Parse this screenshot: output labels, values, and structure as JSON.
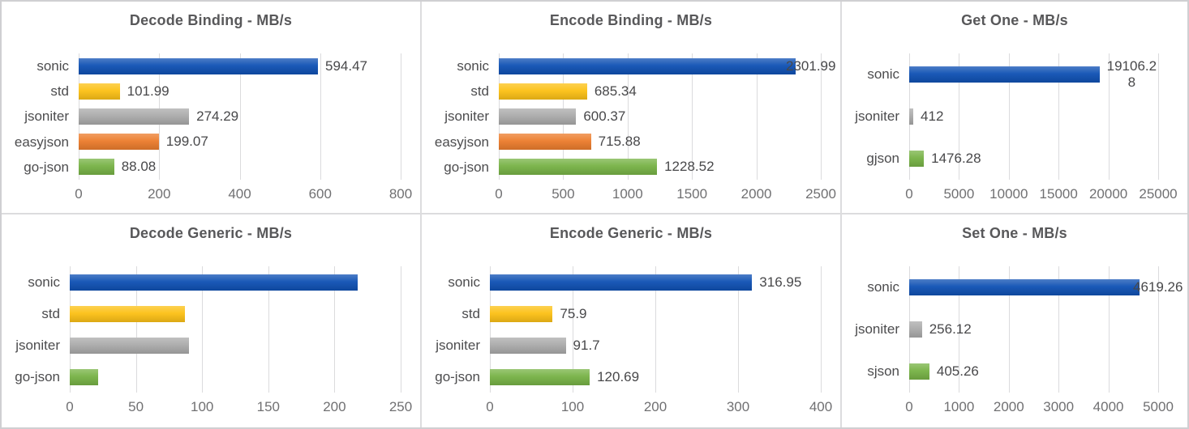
{
  "colors": {
    "sonic": "#1152b4",
    "std": "#fcc117",
    "jsoniter": "#ababab",
    "easyjson": "#ec7d2e",
    "go-json": "#78b347",
    "gjson": "#78b347",
    "sjson": "#78b347",
    "gridline": "#dbdbdd",
    "title_text": "#58585a",
    "category_text": "#4c4c4e",
    "value_text": "#48484a",
    "tick_text": "#707072",
    "panel_border": "#dcdcde",
    "background": "#ffffff"
  },
  "chart_data": [
    {
      "type": "bar",
      "orientation": "horizontal",
      "title": "Decode Binding - MB/s",
      "categories": [
        "sonic",
        "std",
        "jsoniter",
        "easyjson",
        "go-json"
      ],
      "values": [
        594.47,
        101.99,
        274.29,
        199.07,
        88.08
      ],
      "value_labels": [
        "594.47",
        "101.99",
        "274.29",
        "199.07",
        "88.08"
      ],
      "xlim": [
        0,
        800
      ],
      "xticks": [
        0,
        200,
        400,
        600,
        800
      ],
      "grid": true,
      "legend": false
    },
    {
      "type": "bar",
      "orientation": "horizontal",
      "title": "Encode Binding - MB/s",
      "categories": [
        "sonic",
        "std",
        "jsoniter",
        "easyjson",
        "go-json"
      ],
      "values": [
        2301.99,
        685.34,
        600.37,
        715.88,
        1228.52
      ],
      "value_labels": [
        "2301.99",
        "685.34",
        "600.37",
        "715.88",
        "1228.52"
      ],
      "xlim": [
        0,
        2500
      ],
      "xticks": [
        0,
        500,
        1000,
        1500,
        2000,
        2500
      ],
      "grid": true,
      "legend": false
    },
    {
      "type": "bar",
      "orientation": "horizontal",
      "title": "Get One - MB/s",
      "categories": [
        "sonic",
        "jsoniter",
        "gjson"
      ],
      "values": [
        19106.28,
        412,
        1476.28
      ],
      "value_labels": [
        "19106.2\n8",
        "412",
        "1476.28"
      ],
      "xlim": [
        0,
        25000
      ],
      "xticks": [
        0,
        5000,
        10000,
        15000,
        20000,
        25000
      ],
      "grid": true,
      "legend": false
    },
    {
      "type": "bar",
      "orientation": "horizontal",
      "title": "Decode Generic - MB/s",
      "categories": [
        "sonic",
        "std",
        "jsoniter",
        "go-json"
      ],
      "values": [
        217.5,
        87,
        90,
        21.5
      ],
      "value_labels": [
        "",
        "",
        "",
        ""
      ],
      "xlim": [
        0,
        250
      ],
      "xticks": [
        0,
        50,
        100,
        150,
        200,
        250
      ],
      "grid": true,
      "legend": false
    },
    {
      "type": "bar",
      "orientation": "horizontal",
      "title": "Encode Generic - MB/s",
      "categories": [
        "sonic",
        "std",
        "jsoniter",
        "go-json"
      ],
      "values": [
        316.95,
        75.9,
        91.7,
        120.69
      ],
      "value_labels": [
        "316.95",
        "75.9",
        "91.7",
        "120.69"
      ],
      "xlim": [
        0,
        400
      ],
      "xticks": [
        0,
        100,
        200,
        300,
        400
      ],
      "grid": true,
      "legend": false
    },
    {
      "type": "bar",
      "orientation": "horizontal",
      "title": "Set One - MB/s",
      "categories": [
        "sonic",
        "jsoniter",
        "sjson"
      ],
      "values": [
        4619.26,
        256.12,
        405.26
      ],
      "value_labels": [
        "4619.26",
        "256.12",
        "405.26"
      ],
      "xlim": [
        0,
        5000
      ],
      "xticks": [
        0,
        1000,
        2000,
        3000,
        4000,
        5000
      ],
      "grid": true,
      "legend": false
    }
  ]
}
